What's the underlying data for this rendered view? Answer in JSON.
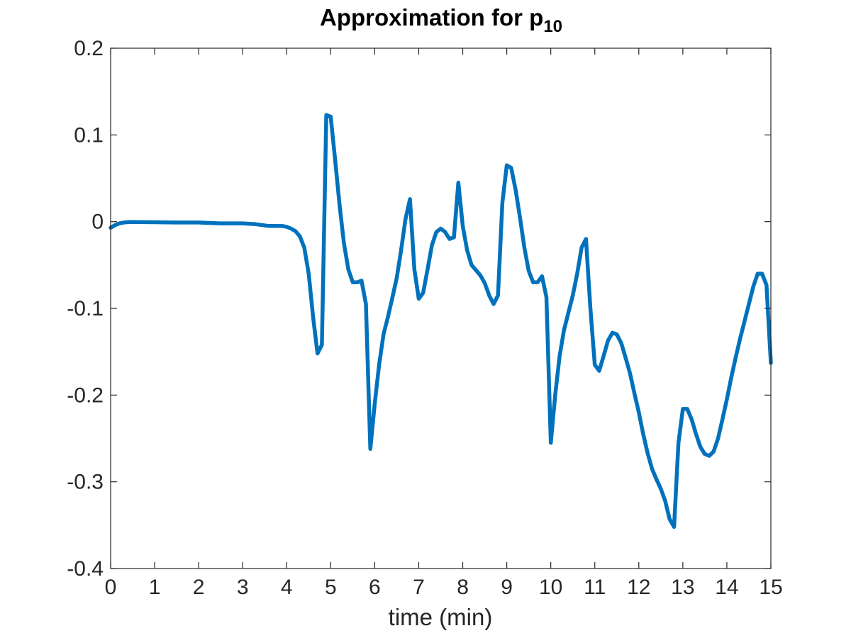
{
  "chart_data": {
    "type": "line",
    "title": {
      "main": "Approximation for p",
      "subscript": "10"
    },
    "xlabel": "time (min)",
    "ylabel": "",
    "xlim": [
      0,
      15
    ],
    "ylim": [
      -0.4,
      0.2
    ],
    "xticks": [
      0,
      1,
      2,
      3,
      4,
      5,
      6,
      7,
      8,
      9,
      10,
      11,
      12,
      13,
      14,
      15
    ],
    "xtick_labels": [
      "0",
      "1",
      "2",
      "3",
      "4",
      "5",
      "6",
      "7",
      "8",
      "9",
      "10",
      "11",
      "12",
      "13",
      "14",
      "15"
    ],
    "yticks": [
      -0.4,
      -0.3,
      -0.2,
      -0.1,
      0,
      0.1,
      0.2
    ],
    "ytick_labels": [
      "-0.4",
      "-0.3",
      "-0.2",
      "-0.1",
      "0",
      "0.1",
      "0.2"
    ],
    "grid": false,
    "series": [
      {
        "color": "#0072BD",
        "x": [
          0,
          0.1,
          0.2,
          0.3,
          0.4,
          0.6,
          1.0,
          1.5,
          2.0,
          2.5,
          3.0,
          3.3,
          3.6,
          3.9,
          4.0,
          4.1,
          4.2,
          4.3,
          4.4,
          4.5,
          4.6,
          4.7,
          4.8,
          4.9,
          5.0,
          5.1,
          5.2,
          5.3,
          5.4,
          5.5,
          5.6,
          5.7,
          5.8,
          5.9,
          6.0,
          6.1,
          6.2,
          6.3,
          6.4,
          6.5,
          6.6,
          6.7,
          6.8,
          6.9,
          7.0,
          7.1,
          7.2,
          7.3,
          7.4,
          7.5,
          7.6,
          7.7,
          7.8,
          7.9,
          8.0,
          8.1,
          8.2,
          8.3,
          8.4,
          8.5,
          8.6,
          8.7,
          8.8,
          8.9,
          9.0,
          9.1,
          9.2,
          9.3,
          9.4,
          9.5,
          9.6,
          9.7,
          9.8,
          9.9,
          10.0,
          10.1,
          10.2,
          10.3,
          10.4,
          10.5,
          10.6,
          10.7,
          10.8,
          10.9,
          11.0,
          11.1,
          11.2,
          11.3,
          11.4,
          11.5,
          11.6,
          11.7,
          11.8,
          11.9,
          12.0,
          12.1,
          12.2,
          12.3,
          12.4,
          12.5,
          12.6,
          12.7,
          12.8,
          12.9,
          13.0,
          13.1,
          13.2,
          13.3,
          13.4,
          13.5,
          13.6,
          13.7,
          13.8,
          13.9,
          14.0,
          14.1,
          14.2,
          14.3,
          14.4,
          14.5,
          14.6,
          14.7,
          14.8,
          14.9,
          15.0
        ],
        "y": [
          -0.007,
          -0.004,
          -0.002,
          -0.001,
          -0.0005,
          -0.0005,
          -0.0007,
          -0.001,
          -0.001,
          -0.002,
          -0.002,
          -0.003,
          -0.005,
          -0.005,
          -0.006,
          -0.008,
          -0.011,
          -0.017,
          -0.03,
          -0.06,
          -0.11,
          -0.152,
          -0.142,
          0.123,
          0.121,
          0.072,
          0.02,
          -0.025,
          -0.055,
          -0.07,
          -0.07,
          -0.068,
          -0.095,
          -0.262,
          -0.21,
          -0.165,
          -0.13,
          -0.11,
          -0.088,
          -0.065,
          -0.033,
          0.003,
          0.026,
          -0.055,
          -0.089,
          -0.082,
          -0.055,
          -0.027,
          -0.012,
          -0.008,
          -0.012,
          -0.02,
          -0.018,
          0.045,
          -0.005,
          -0.033,
          -0.05,
          -0.056,
          -0.062,
          -0.071,
          -0.085,
          -0.095,
          -0.085,
          0.022,
          0.065,
          0.062,
          0.037,
          0.005,
          -0.03,
          -0.057,
          -0.07,
          -0.07,
          -0.063,
          -0.087,
          -0.255,
          -0.2,
          -0.155,
          -0.125,
          -0.105,
          -0.085,
          -0.06,
          -0.03,
          -0.02,
          -0.1,
          -0.165,
          -0.172,
          -0.155,
          -0.137,
          -0.128,
          -0.13,
          -0.14,
          -0.157,
          -0.175,
          -0.198,
          -0.22,
          -0.245,
          -0.267,
          -0.285,
          -0.297,
          -0.308,
          -0.322,
          -0.343,
          -0.352,
          -0.255,
          -0.216,
          -0.216,
          -0.228,
          -0.245,
          -0.26,
          -0.268,
          -0.27,
          -0.265,
          -0.25,
          -0.228,
          -0.205,
          -0.18,
          -0.157,
          -0.135,
          -0.115,
          -0.095,
          -0.075,
          -0.06,
          -0.06,
          -0.073,
          -0.163
        ]
      }
    ]
  }
}
